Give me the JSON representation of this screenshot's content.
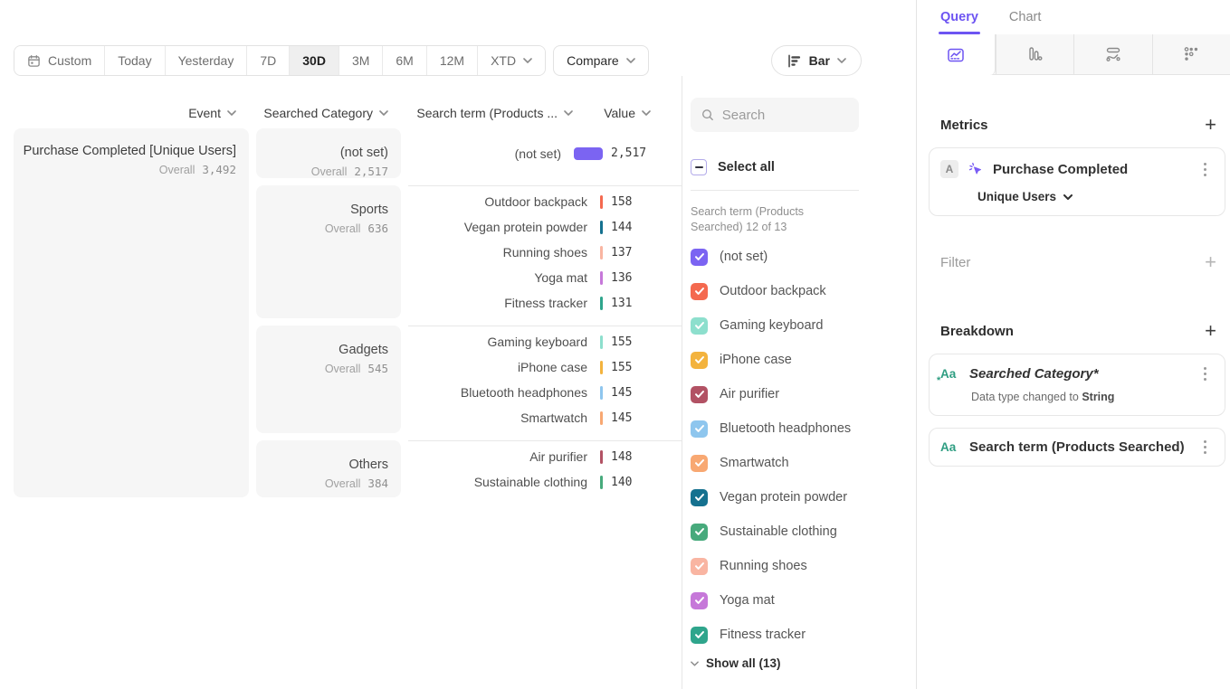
{
  "colors": {
    "accent": "#6d54f2",
    "teal_icon": "#2f9e82"
  },
  "toolbar": {
    "ranges": [
      {
        "label": "Custom",
        "icon": "calendar"
      },
      {
        "label": "Today"
      },
      {
        "label": "Yesterday"
      },
      {
        "label": "7D"
      },
      {
        "label": "30D",
        "active": true
      },
      {
        "label": "3M"
      },
      {
        "label": "6M"
      },
      {
        "label": "12M"
      },
      {
        "label": "XTD",
        "chevron": true
      }
    ],
    "compare": "Compare",
    "chart_type": "Bar"
  },
  "table": {
    "headers": {
      "event": "Event",
      "category": "Searched Category",
      "term": "Search term (Products ...",
      "value": "Value"
    },
    "overall_label": "Overall",
    "event": {
      "name": "Purchase Completed [Unique Users]",
      "overall": "3,492"
    },
    "groups": [
      {
        "category": "(not set)",
        "overall": "2,517",
        "rows": [
          {
            "term": "(not set)",
            "value": "2,517",
            "color": "#7b64f2",
            "big": true
          }
        ]
      },
      {
        "category": "Sports",
        "overall": "636",
        "rows": [
          {
            "term": "Outdoor backpack",
            "value": "158",
            "color": "#f4694f"
          },
          {
            "term": "Vegan protein powder",
            "value": "144",
            "color": "#15718f"
          },
          {
            "term": "Running shoes",
            "value": "137",
            "color": "#f9b5a2"
          },
          {
            "term": "Yoga mat",
            "value": "136",
            "color": "#c678d9"
          },
          {
            "term": "Fitness tracker",
            "value": "131",
            "color": "#2fa58c",
            "pattern": true
          }
        ]
      },
      {
        "category": "Gadgets",
        "overall": "545",
        "rows": [
          {
            "term": "Gaming keyboard",
            "value": "155",
            "color": "#8ddfcd"
          },
          {
            "term": "iPhone case",
            "value": "155",
            "color": "#f3b33e"
          },
          {
            "term": "Bluetooth headphones",
            "value": "145",
            "color": "#8ec6ee"
          },
          {
            "term": "Smartwatch",
            "value": "145",
            "color": "#f8a872"
          }
        ]
      },
      {
        "category": "Others",
        "overall": "384",
        "rows": [
          {
            "term": "Air purifier",
            "value": "148",
            "color": "#b25264"
          },
          {
            "term": "Sustainable clothing",
            "value": "140",
            "color": "#47aa7c"
          }
        ]
      }
    ]
  },
  "panel": {
    "search_placeholder": "Search",
    "select_all": "Select all",
    "list_label": "Search term (Products Searched) 12 of 13",
    "show_all": "Show all (13)",
    "items": [
      {
        "label": "(not set)",
        "color": "#7b64f2",
        "checked": true
      },
      {
        "label": "Outdoor backpack",
        "color": "#f4694f",
        "checked": true
      },
      {
        "label": "Gaming keyboard",
        "color": "#8ddfcd",
        "checked": true
      },
      {
        "label": "iPhone case",
        "color": "#f3b33e",
        "checked": true
      },
      {
        "label": "Air purifier",
        "color": "#b25264",
        "checked": true
      },
      {
        "label": "Bluetooth headphones",
        "color": "#8ec6ee",
        "checked": true
      },
      {
        "label": "Smartwatch",
        "color": "#f8a872",
        "checked": true
      },
      {
        "label": "Vegan protein powder",
        "color": "#15718f",
        "checked": true
      },
      {
        "label": "Sustainable clothing",
        "color": "#47aa7c",
        "checked": true
      },
      {
        "label": "Running shoes",
        "color": "#f9b5a2",
        "checked": true
      },
      {
        "label": "Yoga mat",
        "color": "#c678d9",
        "checked": true
      },
      {
        "label": "Fitness tracker",
        "color": "#2fa58c",
        "checked": true,
        "pattern": true
      }
    ]
  },
  "sidebar": {
    "tabs": [
      {
        "label": "Query",
        "active": true
      },
      {
        "label": "Chart"
      }
    ],
    "metrics_title": "Metrics",
    "metric_card": {
      "badge": "A",
      "name": "Purchase Completed",
      "measure": "Unique Users"
    },
    "filter_title": "Filter",
    "breakdown_title": "Breakdown",
    "breakdown_cards": [
      {
        "icon": "Aa",
        "label": "Searched Category*",
        "italic": true,
        "starred": true,
        "note_prefix": "Data type changed to ",
        "note_bold": "String"
      },
      {
        "icon": "Aa",
        "label": "Search term (Products Searched)"
      }
    ]
  }
}
